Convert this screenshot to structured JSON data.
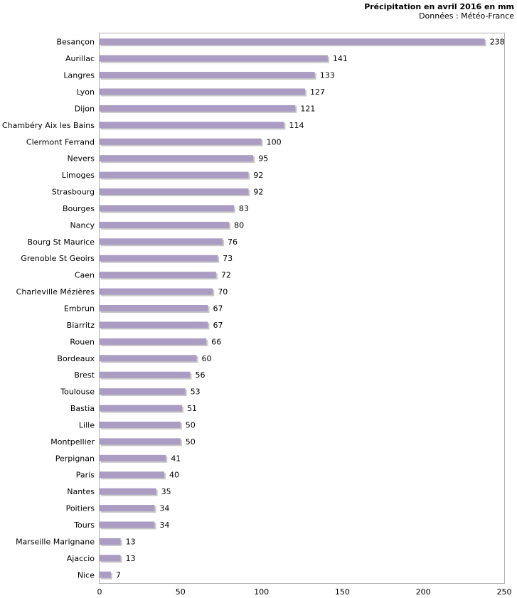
{
  "chart_data": {
    "type": "bar",
    "orientation": "horizontal",
    "title": "Précipitation en avril 2016 en mm",
    "subtitle": "Données : Météo-France",
    "categories": [
      "Besançon",
      "Aurillac",
      "Langres",
      "Lyon",
      "Dijon",
      "Chambéry Aix les Bains",
      "Clermont Ferrand",
      "Nevers",
      "Limoges",
      "Strasbourg",
      "Bourges",
      "Nancy",
      "Bourg St Maurice",
      "Grenoble St Geoirs",
      "Caen",
      "Charleville Mézières",
      "Embrun",
      "Biarritz",
      "Rouen",
      "Bordeaux",
      "Brest",
      "Toulouse",
      "Bastia",
      "Lille",
      "Montpellier",
      "Perpignan",
      "Paris",
      "Nantes",
      "Poitiers",
      "Tours",
      "Marseille Marignane",
      "Ajaccio",
      "Nice"
    ],
    "values": [
      238,
      141,
      133,
      127,
      121,
      114,
      100,
      95,
      92,
      92,
      83,
      80,
      76,
      73,
      72,
      70,
      67,
      67,
      66,
      60,
      56,
      53,
      51,
      50,
      50,
      41,
      40,
      35,
      34,
      34,
      13,
      13,
      7
    ],
    "xlim": [
      0,
      250
    ],
    "xticks": [
      0,
      50,
      100,
      150,
      200,
      250
    ],
    "data_labels": true,
    "grid": false,
    "bar_color": "#ab9cc3",
    "bar_shadow_color": "#c9c9c9"
  }
}
